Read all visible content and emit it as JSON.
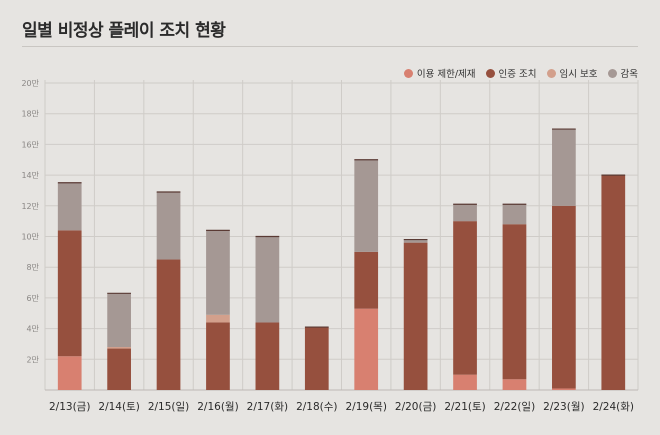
{
  "title": "일별 비정상 플레이 조치 현황",
  "chart_data": {
    "type": "bar",
    "stacked": true,
    "categories": [
      "2/13(금)",
      "2/14(토)",
      "2/15(일)",
      "2/16(월)",
      "2/17(화)",
      "2/18(수)",
      "2/19(목)",
      "2/20(금)",
      "2/21(토)",
      "2/22(일)",
      "2/23(월)",
      "2/24(화)"
    ],
    "series": [
      {
        "name": "이용 제한/제재",
        "color": "#d88070",
        "values": [
          2.2,
          0,
          0,
          0,
          0,
          0,
          5.3,
          0,
          1.0,
          0.7,
          0.1,
          0
        ]
      },
      {
        "name": "인증 조치",
        "color": "#96503e",
        "values": [
          8.2,
          2.7,
          8.5,
          4.4,
          4.4,
          4.1,
          3.7,
          9.6,
          10.0,
          10.1,
          11.9,
          14.0
        ]
      },
      {
        "name": "임시 보호",
        "color": "#d3a08c",
        "values": [
          0,
          0.1,
          0,
          0.5,
          0,
          0,
          0,
          0,
          0,
          0,
          0,
          0
        ]
      },
      {
        "name": "감옥",
        "color": "#a59894",
        "values": [
          3.1,
          3.5,
          4.4,
          5.5,
          5.6,
          0,
          6.0,
          0.2,
          1.1,
          1.3,
          5.0,
          0
        ]
      }
    ],
    "y_ticks": [
      "20만",
      "18만",
      "16만",
      "14만",
      "12만",
      "10만",
      "8만",
      "6만",
      "4만",
      "2만"
    ],
    "ylim": [
      0,
      20
    ],
    "legend_position": "top-right",
    "grid": true
  }
}
